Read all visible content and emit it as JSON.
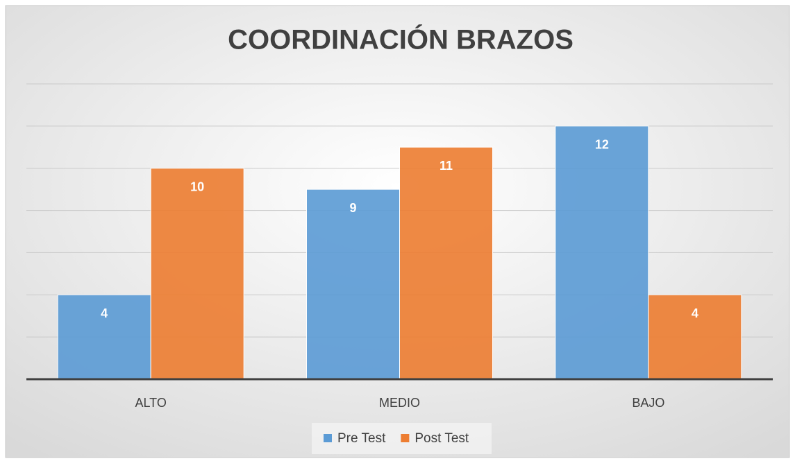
{
  "chart_data": {
    "type": "bar",
    "title": "COORDINACIÓN BRAZOS",
    "categories": [
      "ALTO",
      "MEDIO",
      "BAJO"
    ],
    "series": [
      {
        "name": "Pre Test",
        "color": "#5b9bd5",
        "values": [
          4,
          9,
          12
        ]
      },
      {
        "name": "Post Test",
        "color": "#ed7d31",
        "values": [
          10,
          11,
          4
        ]
      }
    ],
    "ylim": [
      0,
      14
    ],
    "yticks": [
      0,
      2,
      4,
      6,
      8,
      10,
      12,
      14
    ],
    "grid": true,
    "legend": "bottom"
  }
}
